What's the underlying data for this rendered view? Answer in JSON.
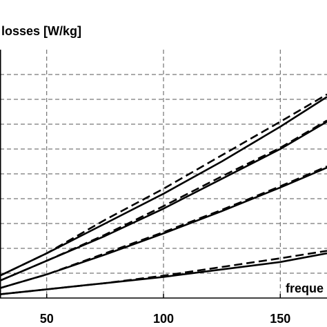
{
  "chart_data": {
    "type": "line",
    "ylabel": "losses [W/kg]",
    "xlabel": "freque",
    "grid": true,
    "grid_style": "dashed",
    "xlim": [
      30,
      170
    ],
    "ylim": [
      0,
      10
    ],
    "x_ticks": [
      50,
      100,
      150
    ],
    "x_tick_labels": [
      "50",
      "100",
      "150"
    ],
    "y_gridlines": [
      1,
      2,
      3,
      4,
      5,
      6,
      7,
      8,
      9
    ],
    "series": [
      {
        "style": "solid",
        "x": [
          30,
          50,
          75,
          100,
          125,
          150,
          170
        ],
        "y": [
          0.9,
          1.8,
          3.0,
          4.2,
          5.5,
          6.9,
          8.1
        ]
      },
      {
        "style": "dashed",
        "x": [
          30,
          50,
          75,
          100,
          125,
          150,
          170
        ],
        "y": [
          0.9,
          1.8,
          3.15,
          4.4,
          5.75,
          7.1,
          8.2
        ]
      },
      {
        "style": "solid",
        "x": [
          30,
          50,
          75,
          100,
          125,
          150,
          170
        ],
        "y": [
          0.7,
          1.5,
          2.5,
          3.6,
          4.8,
          6.0,
          7.1
        ]
      },
      {
        "style": "dashed",
        "x": [
          30,
          50,
          75,
          100,
          125,
          150,
          170
        ],
        "y": [
          0.7,
          1.5,
          2.55,
          3.7,
          4.9,
          6.05,
          7.15
        ]
      },
      {
        "style": "solid",
        "x": [
          30,
          50,
          75,
          100,
          125,
          150,
          170
        ],
        "y": [
          0.4,
          0.95,
          1.75,
          2.6,
          3.5,
          4.45,
          5.25
        ]
      },
      {
        "style": "dashed",
        "x": [
          30,
          50,
          75,
          100,
          125,
          150,
          170
        ],
        "y": [
          0.4,
          0.95,
          1.8,
          2.65,
          3.55,
          4.5,
          5.3
        ]
      },
      {
        "style": "solid",
        "x": [
          30,
          50,
          75,
          100,
          125,
          150,
          170
        ],
        "y": [
          0.15,
          0.35,
          0.6,
          0.85,
          1.15,
          1.45,
          1.8
        ]
      },
      {
        "style": "dashed",
        "x": [
          30,
          50,
          75,
          100,
          125,
          150,
          170
        ],
        "y": [
          0.15,
          0.35,
          0.6,
          0.9,
          1.25,
          1.6,
          1.9
        ]
      }
    ],
    "line_color": "#000000",
    "grid_color": "#555555"
  }
}
